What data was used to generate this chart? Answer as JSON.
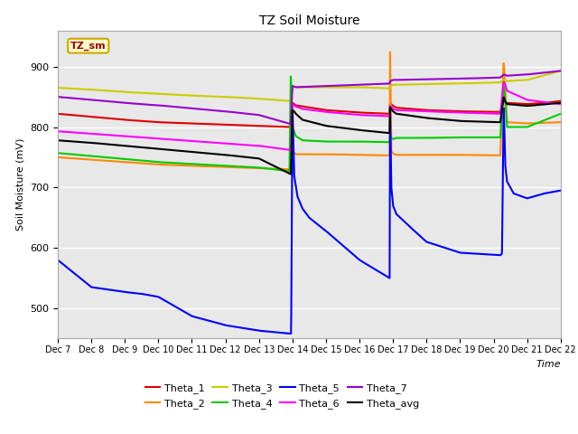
{
  "title": "TZ Soil Moisture",
  "xlabel": "Time",
  "ylabel": "Soil Moisture (mV)",
  "ylim": [
    450,
    960
  ],
  "xlim": [
    0,
    15
  ],
  "x_tick_labels": [
    "Dec 7",
    "Dec 8",
    "Dec 9",
    "Dec 10",
    "Dec 11",
    "Dec 12",
    "Dec 13",
    "Dec 14",
    "Dec 15",
    "Dec 16",
    "Dec 17",
    "Dec 18",
    "Dec 19",
    "Dec 20",
    "Dec 21",
    "Dec 22"
  ],
  "background_color": "#e8e8e8",
  "legend_box_label": "TZ_sm",
  "legend_box_color": "#ffffcc",
  "legend_box_border": "#ccaa00",
  "legend_text_color": "#990000",
  "colors": {
    "Theta_1": "#dd0000",
    "Theta_2": "#ff8800",
    "Theta_3": "#cccc00",
    "Theta_4": "#00cc00",
    "Theta_5": "#0000ff",
    "Theta_6": "#ff00ff",
    "Theta_7": "#9900cc",
    "Theta_avg": "#000000"
  },
  "legend_order": [
    "Theta_1",
    "Theta_2",
    "Theta_3",
    "Theta_4",
    "Theta_5",
    "Theta_6",
    "Theta_7",
    "Theta_avg"
  ]
}
